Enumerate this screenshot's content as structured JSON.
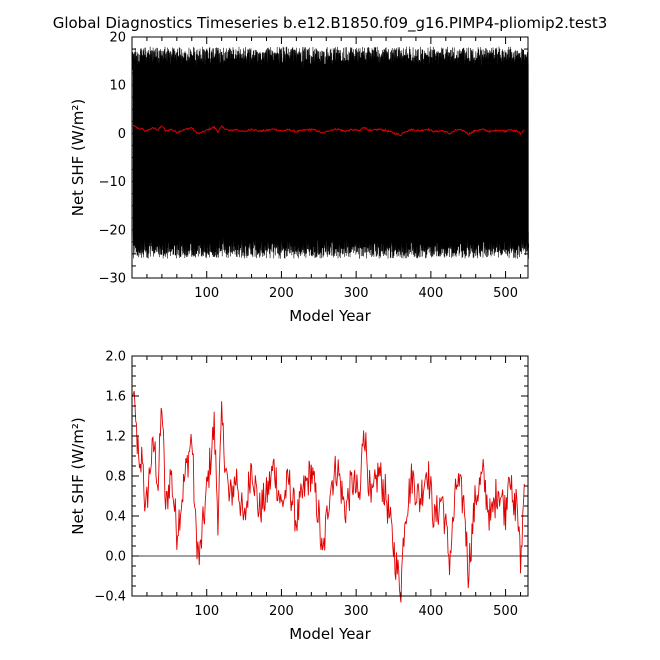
{
  "figure": {
    "title": "Global Diagnostics Timeseries b.e12.B1850.f09_g16.PIMP4-pliomip2.test3"
  },
  "chart_data": [
    {
      "type": "line",
      "xlabel": "Model Year",
      "ylabel": "Net SHF (W/m²)",
      "xlim": [
        0,
        530
      ],
      "ylim": [
        -30,
        20
      ],
      "x_ticks": [
        100,
        200,
        300,
        400,
        500
      ],
      "x_tick_labels": [
        "100",
        "200",
        "300",
        "400",
        "500"
      ],
      "y_ticks": [
        -30,
        -20,
        -10,
        0,
        10,
        20
      ],
      "y_tick_labels": [
        "−30",
        "−20",
        "−10",
        "0",
        "10",
        "20"
      ],
      "grid": false,
      "series": [
        {
          "color": "#000000",
          "description_values": "monthly values oscillating seasonally between about -24 and +16 for years 1-530",
          "seasonal_max": 16,
          "seasonal_min": -24,
          "x_range": [
            1,
            530
          ]
        },
        {
          "color": "#e00000",
          "values_ref": "annual mean series shown in lower panel",
          "x_range": [
            1,
            530
          ]
        }
      ]
    },
    {
      "type": "line",
      "xlabel": "Model Year",
      "ylabel": "Net SHF (W/m²)",
      "xlim": [
        0,
        530
      ],
      "ylim": [
        -0.4,
        2.0
      ],
      "x_ticks": [
        100,
        200,
        300,
        400,
        500
      ],
      "x_tick_labels": [
        "100",
        "200",
        "300",
        "400",
        "500"
      ],
      "y_ticks": [
        -0.4,
        0.0,
        0.4,
        0.8,
        1.2,
        1.6,
        2.0
      ],
      "y_tick_labels": [
        "−0.4",
        "0.0",
        "0.4",
        "0.8",
        "1.2",
        "1.6",
        "2.0"
      ],
      "zero_line": true,
      "grid": false,
      "series": [
        {
          "color": "#e00000",
          "x_start": 1,
          "x_end": 525,
          "anchors": [
            [
              1,
              1.6
            ],
            [
              3,
              1.65
            ],
            [
              5,
              1.35
            ],
            [
              8,
              1.05
            ],
            [
              10,
              0.75
            ],
            [
              14,
              1.05
            ],
            [
              18,
              0.4
            ],
            [
              25,
              0.95
            ],
            [
              30,
              1.1
            ],
            [
              35,
              0.7
            ],
            [
              40,
              1.55
            ],
            [
              45,
              0.45
            ],
            [
              52,
              0.85
            ],
            [
              60,
              0.25
            ],
            [
              70,
              0.75
            ],
            [
              80,
              1.2
            ],
            [
              85,
              0.3
            ],
            [
              90,
              -0.05
            ],
            [
              100,
              0.65
            ],
            [
              110,
              1.3
            ],
            [
              115,
              0.4
            ],
            [
              120,
              1.35
            ],
            [
              130,
              0.55
            ],
            [
              140,
              0.8
            ],
            [
              150,
              0.3
            ],
            [
              160,
              0.95
            ],
            [
              170,
              0.45
            ],
            [
              180,
              0.6
            ],
            [
              190,
              0.9
            ],
            [
              200,
              0.5
            ],
            [
              210,
              0.75
            ],
            [
              220,
              0.35
            ],
            [
              230,
              0.65
            ],
            [
              240,
              0.85
            ],
            [
              250,
              0.4
            ],
            [
              255,
              -0.05
            ],
            [
              265,
              0.7
            ],
            [
              275,
              0.9
            ],
            [
              285,
              0.45
            ],
            [
              295,
              0.75
            ],
            [
              305,
              0.55
            ],
            [
              310,
              1.35
            ],
            [
              320,
              0.5
            ],
            [
              330,
              0.85
            ],
            [
              340,
              0.6
            ],
            [
              350,
              0.1
            ],
            [
              355,
              -0.15
            ],
            [
              360,
              -0.3
            ],
            [
              365,
              0.4
            ],
            [
              375,
              0.8
            ],
            [
              385,
              0.55
            ],
            [
              395,
              0.9
            ],
            [
              405,
              0.35
            ],
            [
              415,
              0.6
            ],
            [
              425,
              -0.05
            ],
            [
              435,
              0.75
            ],
            [
              445,
              0.5
            ],
            [
              450,
              -0.15
            ],
            [
              460,
              0.6
            ],
            [
              470,
              0.8
            ],
            [
              480,
              0.35
            ],
            [
              490,
              0.7
            ],
            [
              500,
              0.45
            ],
            [
              505,
              0.95
            ],
            [
              510,
              0.4
            ],
            [
              515,
              0.6
            ],
            [
              520,
              -0.1
            ],
            [
              525,
              0.7
            ]
          ],
          "noise_amplitude": 0.22
        }
      ]
    }
  ]
}
